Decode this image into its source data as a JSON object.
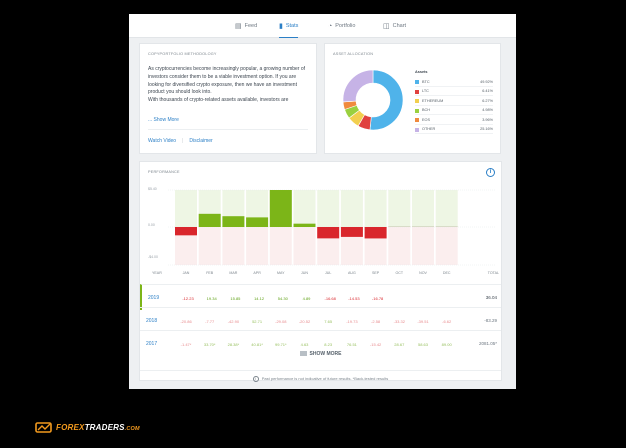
{
  "tabs": [
    {
      "label": "Feed",
      "icon": "feed-icon"
    },
    {
      "label": "Stats",
      "icon": "bar-chart-icon",
      "active": true
    },
    {
      "label": "Portfolio",
      "icon": "pie-icon"
    },
    {
      "label": "Chart",
      "icon": "chart-icon"
    }
  ],
  "methodology": {
    "title": "CopyPortfolio Methodology",
    "text_1": "As cryptocurrencies become increasingly popular, a growing number of investors consider them to be a viable investment option. If you are looking for diversified crypto exposure, then we have an investment product you should look into.",
    "text_2": "With thousands of crypto-related assets available, investors are",
    "more": "... Show More",
    "link_video": "Watch Video",
    "link_disclaimer": "Disclaimer"
  },
  "allocation": {
    "title": "Asset Allocation",
    "assets_header": "Assets",
    "assets": [
      {
        "name": "BTC",
        "pct": "49.92%",
        "value": 49.92,
        "color": "#4fb3ea"
      },
      {
        "name": "LTC",
        "pct": "6.41%",
        "value": 6.41,
        "color": "#e0413f"
      },
      {
        "name": "ETHEREUM",
        "pct": "6.27%",
        "value": 6.27,
        "color": "#f2cf4f"
      },
      {
        "name": "BCH",
        "pct": "4.98%",
        "value": 4.98,
        "color": "#9ad03f"
      },
      {
        "name": "EOS",
        "pct": "3.96%",
        "value": 3.96,
        "color": "#f08a3e"
      },
      {
        "name": "OTHER",
        "pct": "25.16%",
        "value": 25.16,
        "color": "#c6b3e6"
      }
    ]
  },
  "performance": {
    "title": "Performance",
    "y_ticks": [
      "$5.40",
      "0.00",
      "-$4.00"
    ],
    "col_year": "Year",
    "col_total": "Total",
    "months": [
      "Jan",
      "Feb",
      "Mar",
      "Apr",
      "May",
      "Jun",
      "Jul",
      "Aug",
      "Sep",
      "Oct",
      "Nov",
      "Dec"
    ],
    "rows": [
      {
        "year": "2019",
        "cells": [
          "-12.23",
          "19.34",
          "15.85",
          "14.12",
          "54.30",
          "4.89",
          "-16.68",
          "-14.53",
          "-16.78",
          "",
          "",
          ""
        ],
        "total": "36.04"
      },
      {
        "year": "2018",
        "cells": [
          "-20.86",
          "-7.77",
          "-42.90",
          "52.71",
          "-29.08",
          "-20.52",
          "7.65",
          "-19.73",
          "-2.58",
          "-33.32",
          "-39.51",
          "-6.62"
        ],
        "total": "-83.29"
      },
      {
        "year": "2017",
        "cells": [
          "-1.47*",
          "33.70*",
          "28.38*",
          "40.81*",
          "99.71*",
          "4.63",
          "8.23",
          "76.51",
          "-15.42",
          "28.67",
          "58.63",
          "89.00"
        ],
        "total": "2081.05*"
      }
    ],
    "show_more": "SHOW MORE",
    "footnote": "Past performance is not indicative of future results. *Back-tested results"
  },
  "chart_data": {
    "type": "bar",
    "categories": [
      "Jan",
      "Feb",
      "Mar",
      "Apr",
      "May",
      "Jun",
      "Jul",
      "Aug",
      "Sep",
      "Oct",
      "Nov",
      "Dec"
    ],
    "values": [
      -12.23,
      19.34,
      15.85,
      14.12,
      54.3,
      4.89,
      -16.68,
      -14.53,
      -16.78,
      0,
      0,
      0
    ],
    "title": "PERFORMANCE",
    "xlabel": "",
    "ylabel": "",
    "colors": {
      "positive": "#7cb518",
      "negative": "#d9262c",
      "pos_bg": "#eef6e4",
      "neg_bg": "#fbeeee"
    }
  },
  "logo": {
    "brand_1": "FOREX",
    "brand_2": "TRADERS",
    "suffix": ".COM"
  }
}
